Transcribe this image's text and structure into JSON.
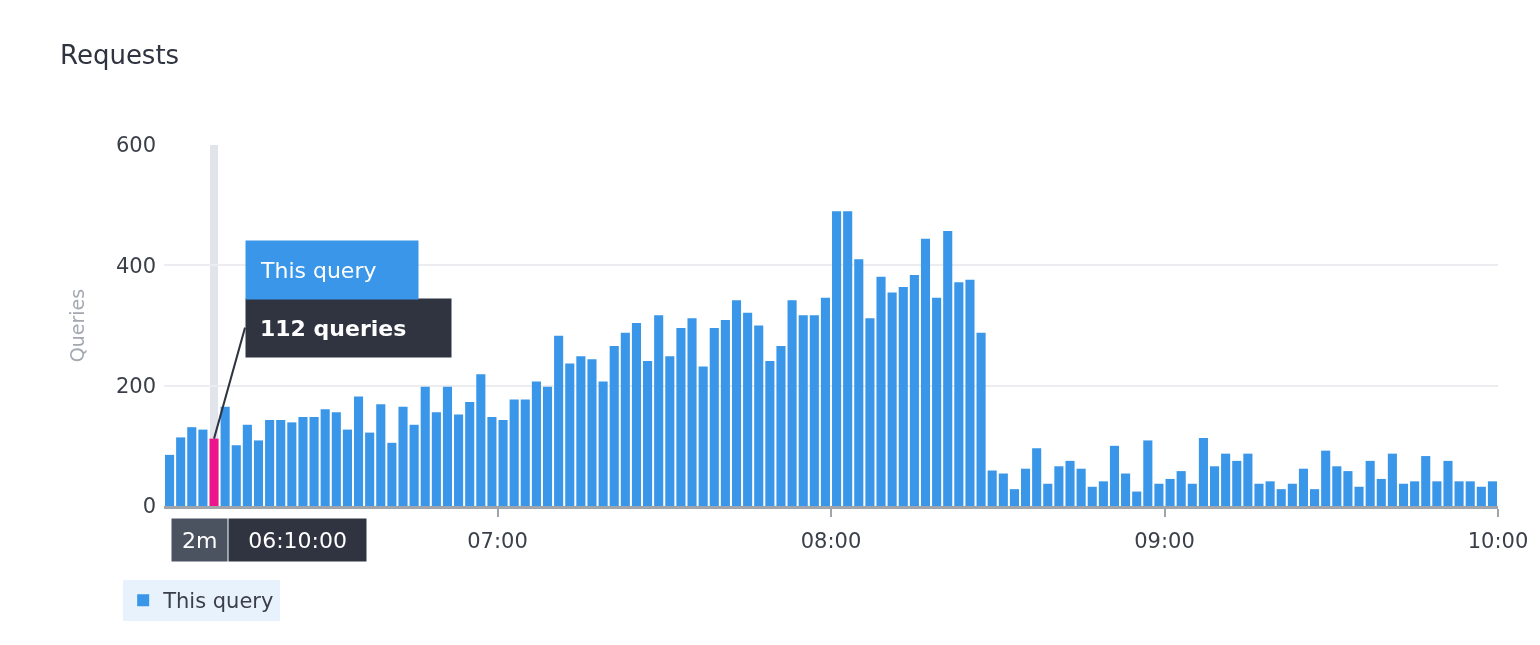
{
  "chart_data": {
    "type": "bar",
    "title": "Requests",
    "ylabel": "Queries",
    "x": [
      6.0167,
      6.05,
      6.0833,
      6.1167,
      6.15,
      6.1833,
      6.2167,
      6.25,
      6.2833,
      6.3167,
      6.35,
      6.3833,
      6.4167,
      6.45,
      6.4833,
      6.5167,
      6.55,
      6.5833,
      6.6167,
      6.65,
      6.6833,
      6.7167,
      6.75,
      6.7833,
      6.8167,
      6.85,
      6.8833,
      6.9167,
      6.95,
      6.9833,
      7.0167,
      7.05,
      7.0833,
      7.1167,
      7.15,
      7.1833,
      7.2167,
      7.25,
      7.2833,
      7.3167,
      7.35,
      7.3833,
      7.4167,
      7.45,
      7.4833,
      7.5167,
      7.55,
      7.5833,
      7.6167,
      7.65,
      7.6833,
      7.7167,
      7.75,
      7.7833,
      7.8167,
      7.85,
      7.8833,
      7.9167,
      7.95,
      7.9833,
      8.0167,
      8.05,
      8.0833,
      8.1167,
      8.15,
      8.1833,
      8.2167,
      8.25,
      8.2833,
      8.3167,
      8.35,
      8.3833,
      8.4167,
      8.45,
      8.4833,
      8.5167,
      8.55,
      8.5833,
      8.6167,
      8.65,
      8.6833,
      8.7167,
      8.75,
      8.7833,
      8.8167,
      8.85,
      8.8833,
      8.9167,
      8.95,
      8.9833,
      9.0167,
      9.05,
      9.0833,
      9.1167,
      9.15,
      9.1833,
      9.2167,
      9.25,
      9.2833,
      9.3167,
      9.35,
      9.3833,
      9.4167,
      9.45,
      9.4833,
      9.5167,
      9.55,
      9.5833,
      9.6167,
      9.65,
      9.6833,
      9.7167,
      9.75,
      9.7833,
      9.8167,
      9.85,
      9.8833,
      9.9167,
      9.95,
      9.9833
    ],
    "series": [
      {
        "name": "This query",
        "values": [
          85,
          114,
          131,
          127,
          112,
          165,
          101,
          135,
          109,
          143,
          143,
          139,
          148,
          148,
          161,
          156,
          127,
          182,
          122,
          169,
          105,
          165,
          135,
          198,
          156,
          198,
          152,
          173,
          219,
          148,
          143,
          177,
          177,
          207,
          198,
          283,
          237,
          249,
          244,
          207,
          266,
          288,
          304,
          241,
          317,
          249,
          296,
          312,
          232,
          296,
          309,
          342,
          321,
          300,
          241,
          266,
          342,
          317,
          317,
          346,
          490,
          490,
          410,
          312,
          381,
          355,
          364,
          384,
          444,
          346,
          457,
          372,
          376,
          288,
          59,
          54,
          28,
          62,
          96,
          37,
          66,
          75,
          62,
          32,
          41,
          100,
          54,
          24,
          109,
          37,
          45,
          58,
          37,
          113,
          66,
          87,
          75,
          87,
          37,
          41,
          28,
          37,
          62,
          28,
          92,
          66,
          58,
          32,
          75,
          45,
          87,
          37,
          41,
          83,
          41,
          75,
          41,
          41,
          32,
          41
        ],
        "colors": [
          "#3a96e8",
          "#3a96e8",
          "#3a96e8",
          "#3a96e8",
          "#ec168c",
          "#3a96e8",
          "#3a96e8",
          "#3a96e8",
          "#3a96e8",
          "#3a96e8",
          "#3a96e8",
          "#3a96e8",
          "#3a96e8",
          "#3a96e8",
          "#3a96e8",
          "#3a96e8",
          "#3a96e8",
          "#3a96e8",
          "#3a96e8",
          "#3a96e8",
          "#3a96e8",
          "#3a96e8",
          "#3a96e8",
          "#3a96e8",
          "#3a96e8",
          "#3a96e8",
          "#3a96e8",
          "#3a96e8",
          "#3a96e8",
          "#3a96e8",
          "#3a96e8",
          "#3a96e8",
          "#3a96e8",
          "#3a96e8",
          "#3a96e8",
          "#3a96e8",
          "#3a96e8",
          "#3a96e8",
          "#3a96e8",
          "#3a96e8",
          "#3a96e8",
          "#3a96e8",
          "#3a96e8",
          "#3a96e8",
          "#3a96e8",
          "#3a96e8",
          "#3a96e8",
          "#3a96e8",
          "#3a96e8",
          "#3a96e8",
          "#3a96e8",
          "#3a96e8",
          "#3a96e8",
          "#3a96e8",
          "#3a96e8",
          "#3a96e8",
          "#3a96e8",
          "#3a96e8",
          "#3a96e8",
          "#3a96e8",
          "#3a96e8",
          "#3a96e8",
          "#3a96e8",
          "#3a96e8",
          "#3a96e8",
          "#3a96e8",
          "#3a96e8",
          "#3a96e8",
          "#3a96e8",
          "#3a96e8",
          "#3a96e8",
          "#3a96e8",
          "#3a96e8",
          "#3a96e8",
          "#3a96e8",
          "#3a96e8",
          "#3a96e8",
          "#3a96e8",
          "#3a96e8",
          "#3a96e8",
          "#3a96e8",
          "#3a96e8",
          "#3a96e8",
          "#3a96e8",
          "#3a96e8",
          "#3a96e8",
          "#3a96e8",
          "#3a96e8",
          "#3a96e8",
          "#3a96e8",
          "#3a96e8",
          "#3a96e8",
          "#3a96e8",
          "#3a96e8",
          "#3a96e8",
          "#3a96e8",
          "#3a96e8",
          "#3a96e8",
          "#3a96e8",
          "#3a96e8",
          "#3a96e8",
          "#3a96e8",
          "#3a96e8",
          "#3a96e8",
          "#3a96e8",
          "#3a96e8",
          "#3a96e8",
          "#3a96e8",
          "#3a96e8",
          "#3a96e8",
          "#3a96e8",
          "#3a96e8",
          "#3a96e8",
          "#3a96e8",
          "#3a96e8",
          "#3a96e8",
          "#3a96e8",
          "#3a96e8",
          "#3a96e8",
          "#3a96e8"
        ]
      }
    ],
    "xlim": [
      6,
      10
    ],
    "xticks": [
      {
        "value": 7,
        "label": "07:00"
      },
      {
        "value": 8,
        "label": "08:00"
      },
      {
        "value": 9,
        "label": "09:00"
      },
      {
        "value": 10,
        "label": "10:00"
      }
    ],
    "ylim": [
      0,
      600
    ],
    "yticks": [
      0,
      200,
      400,
      600
    ],
    "ref_lines": [
      {
        "axis": "x",
        "value": 6.15,
        "color": "#e1e4eb"
      }
    ],
    "annotations": [
      "This query",
      {
        "text": "112 queries",
        "x": 6.15,
        "y": 112
      },
      "2m",
      "06:10:00"
    ],
    "grid": "y",
    "legend": "bottom left"
  }
}
